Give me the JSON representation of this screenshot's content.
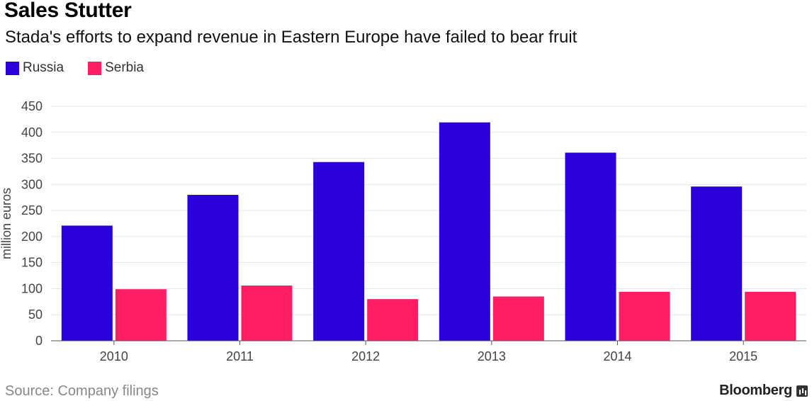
{
  "title": "Sales Stutter",
  "subtitle": "Stada's efforts to expand revenue in Eastern Europe have failed to bear fruit",
  "source": "Source: Company filings",
  "brand": "Bloomberg",
  "colors": {
    "russia": "#2a00db",
    "serbia": "#ff1e64",
    "gridline": "#e6e6e6",
    "axis": "#555555"
  },
  "chart_data": {
    "type": "bar",
    "categories": [
      "2010",
      "2011",
      "2012",
      "2013",
      "2014",
      "2015"
    ],
    "series": [
      {
        "name": "Russia",
        "values": [
          221,
          280,
          343,
          419,
          361,
          296
        ]
      },
      {
        "name": "Serbia",
        "values": [
          99,
          106,
          80,
          85,
          94,
          94
        ]
      }
    ],
    "ylabel": "million euros",
    "yticks": [
      0,
      50,
      100,
      150,
      200,
      250,
      300,
      350,
      400,
      450
    ],
    "ylim": [
      0,
      450
    ],
    "grid": true,
    "legend": "top-left"
  }
}
